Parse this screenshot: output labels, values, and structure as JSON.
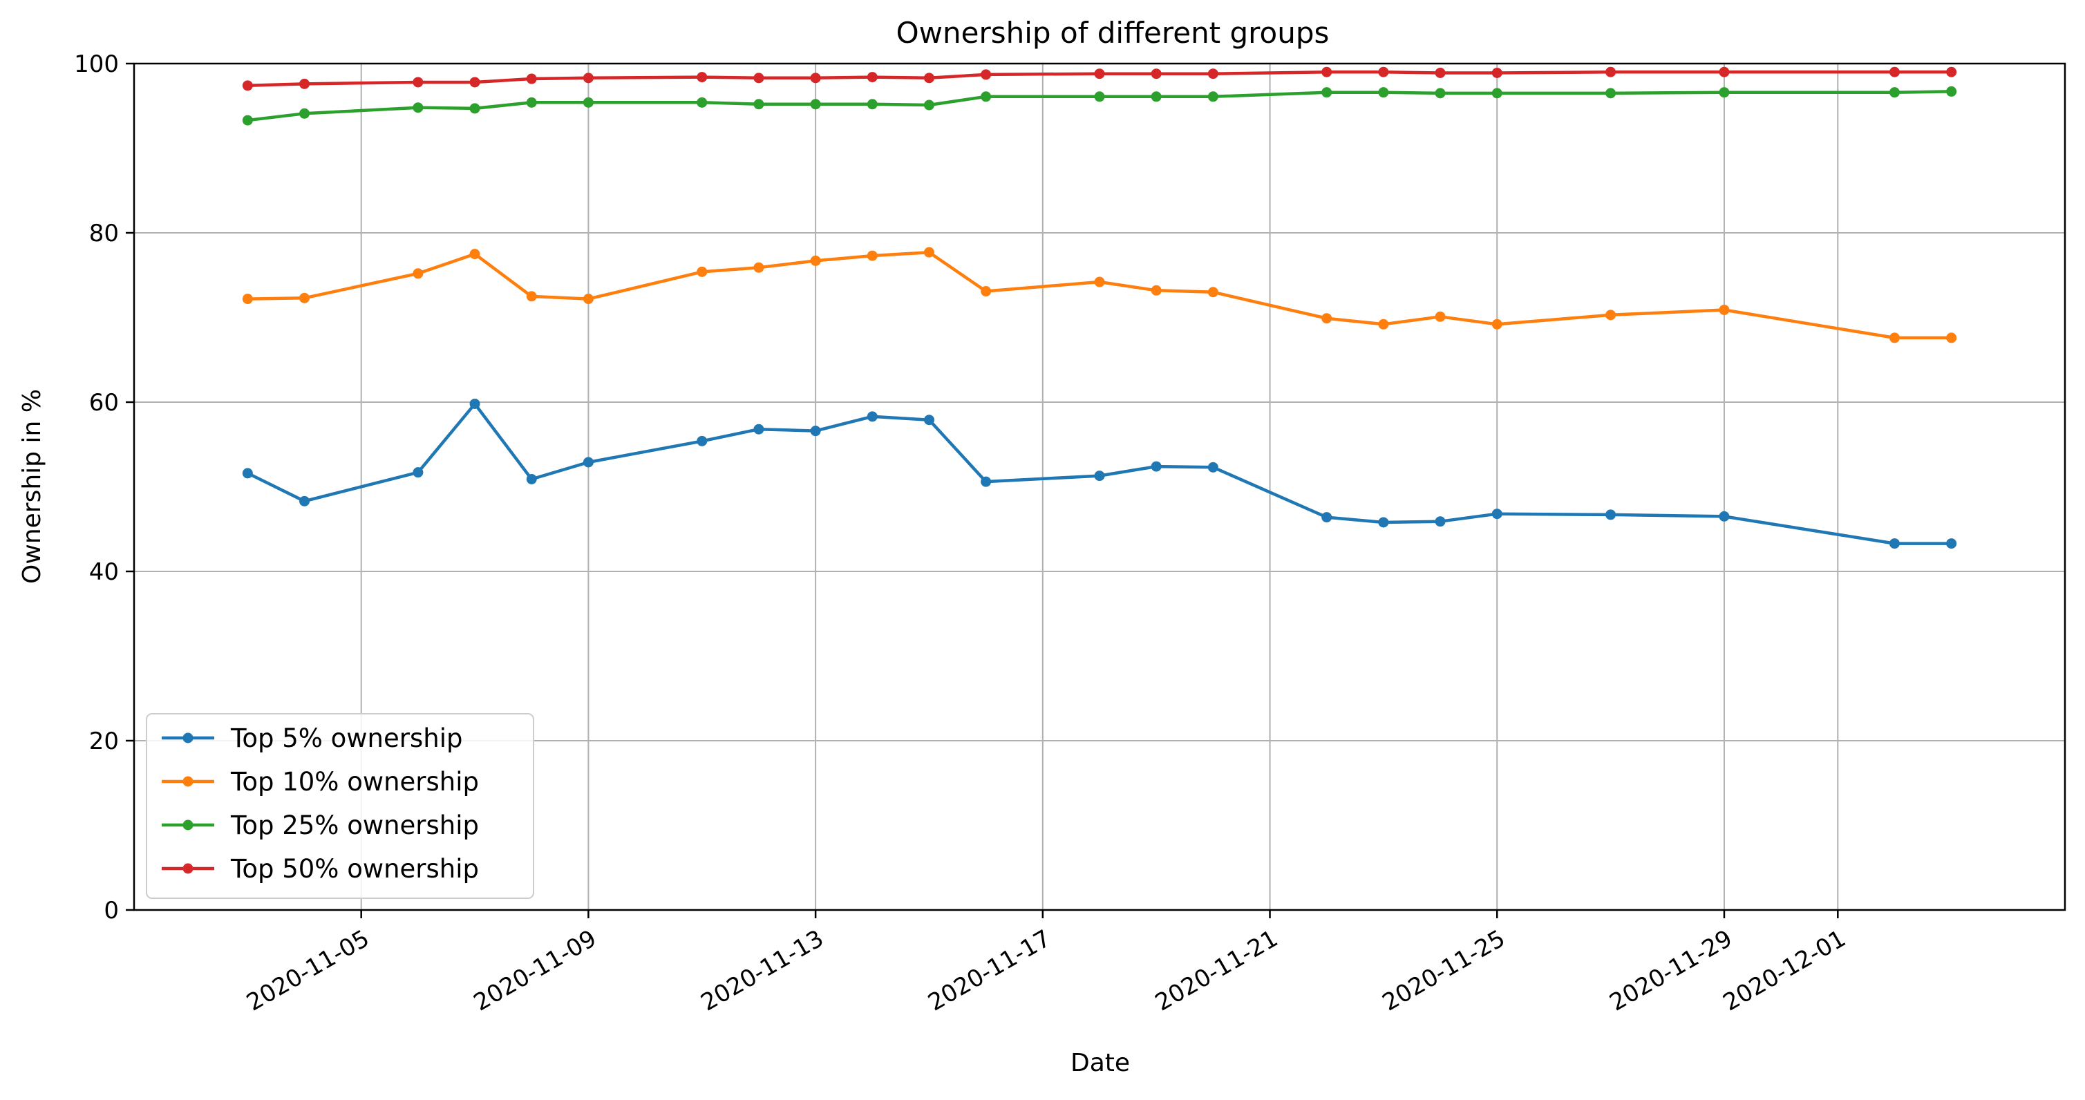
{
  "chart_data": {
    "type": "line",
    "title": "Ownership of different groups",
    "xlabel": "Date",
    "ylabel": "Ownership in %",
    "ylim": [
      0,
      100
    ],
    "xlim": [
      "2020-11-01",
      "2020-12-05"
    ],
    "yticks": [
      0,
      20,
      40,
      60,
      80,
      100
    ],
    "xticks": [
      "2020-11-05",
      "2020-11-09",
      "2020-11-13",
      "2020-11-17",
      "2020-11-21",
      "2020-11-25",
      "2020-11-29",
      "2020-12-01"
    ],
    "grid": true,
    "legend_position": "lower-left",
    "x": [
      "2020-11-03",
      "2020-11-04",
      "2020-11-06",
      "2020-11-07",
      "2020-11-08",
      "2020-11-09",
      "2020-11-11",
      "2020-11-12",
      "2020-11-13",
      "2020-11-14",
      "2020-11-15",
      "2020-11-16",
      "2020-11-18",
      "2020-11-19",
      "2020-11-20",
      "2020-11-22",
      "2020-11-23",
      "2020-11-24",
      "2020-11-25",
      "2020-11-27",
      "2020-11-29",
      "2020-12-02",
      "2020-12-03"
    ],
    "series": [
      {
        "name": "Top 5% ownership",
        "color": "#1f77b4",
        "values": [
          51.6,
          48.3,
          51.7,
          59.8,
          50.9,
          52.9,
          55.4,
          56.8,
          56.6,
          58.3,
          57.9,
          50.6,
          51.3,
          52.4,
          52.3,
          46.4,
          45.8,
          45.9,
          46.8,
          46.7,
          46.5,
          43.3,
          43.3
        ]
      },
      {
        "name": "Top 10% ownership",
        "color": "#ff7f0e",
        "values": [
          72.2,
          72.3,
          75.2,
          77.5,
          72.5,
          72.2,
          75.4,
          75.9,
          76.7,
          77.3,
          77.7,
          73.1,
          74.2,
          73.2,
          73.0,
          69.9,
          69.2,
          70.1,
          69.2,
          70.3,
          70.9,
          67.6,
          67.6
        ]
      },
      {
        "name": "Top 25% ownership",
        "color": "#2ca02c",
        "values": [
          93.3,
          94.1,
          94.8,
          94.7,
          95.4,
          95.4,
          95.4,
          95.2,
          95.2,
          95.2,
          95.1,
          96.1,
          96.1,
          96.1,
          96.1,
          96.6,
          96.6,
          96.5,
          96.5,
          96.5,
          96.6,
          96.6,
          96.7
        ]
      },
      {
        "name": "Top 50% ownership",
        "color": "#d62728",
        "values": [
          97.4,
          97.6,
          97.8,
          97.8,
          98.2,
          98.3,
          98.4,
          98.3,
          98.3,
          98.4,
          98.3,
          98.7,
          98.8,
          98.8,
          98.8,
          99.0,
          99.0,
          98.9,
          98.9,
          99.0,
          99.0,
          99.0,
          99.0
        ]
      }
    ]
  }
}
